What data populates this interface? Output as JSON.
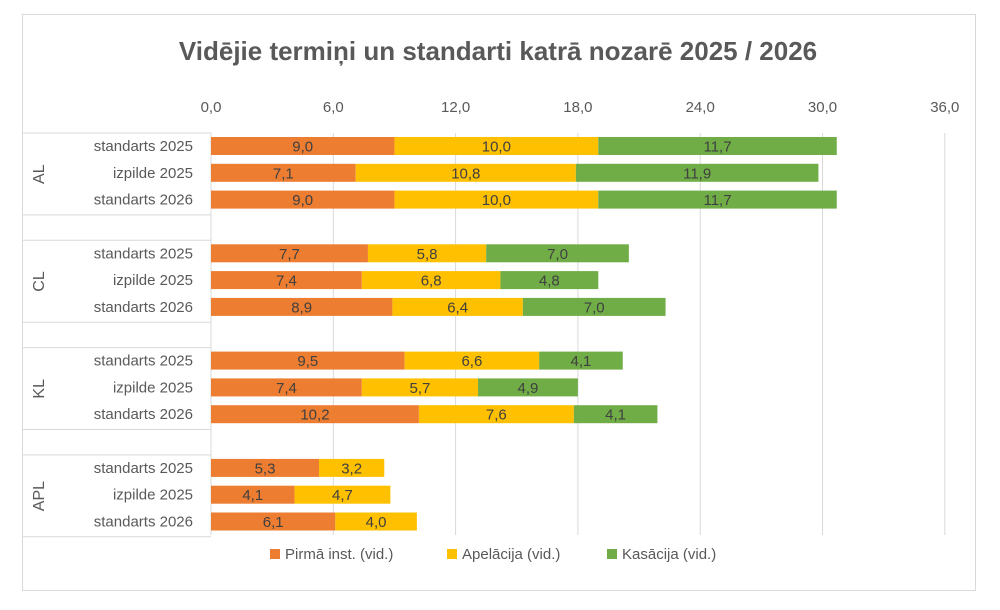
{
  "chart_data": {
    "type": "bar",
    "orientation": "horizontal",
    "stacked": true,
    "title": "Vidējie termiņi un standarti katrā nozarē 2025 / 2026",
    "xlim": [
      0,
      36
    ],
    "x_ticks": [
      "0,0",
      "6,0",
      "12,0",
      "18,0",
      "24,0",
      "30,0",
      "36,0"
    ],
    "x_tick_values": [
      0,
      6,
      12,
      18,
      24,
      30,
      36
    ],
    "grid": true,
    "legend_position": "bottom",
    "groups": [
      {
        "name": "AL",
        "rows": [
          {
            "label": "standarts 2025",
            "values": [
              9.0,
              10.0,
              11.7
            ],
            "labels": [
              "9,0",
              "10,0",
              "11,7"
            ]
          },
          {
            "label": "izpilde 2025",
            "values": [
              7.1,
              10.8,
              11.9
            ],
            "labels": [
              "7,1",
              "10,8",
              "11,9"
            ]
          },
          {
            "label": "standarts 2026",
            "values": [
              9.0,
              10.0,
              11.7
            ],
            "labels": [
              "9,0",
              "10,0",
              "11,7"
            ]
          }
        ]
      },
      {
        "name": "CL",
        "rows": [
          {
            "label": "standarts 2025",
            "values": [
              7.7,
              5.8,
              7.0
            ],
            "labels": [
              "7,7",
              "5,8",
              "7,0"
            ]
          },
          {
            "label": "izpilde 2025",
            "values": [
              7.4,
              6.8,
              4.8
            ],
            "labels": [
              "7,4",
              "6,8",
              "4,8"
            ]
          },
          {
            "label": "standarts 2026",
            "values": [
              8.9,
              6.4,
              7.0
            ],
            "labels": [
              "8,9",
              "6,4",
              "7,0"
            ]
          }
        ]
      },
      {
        "name": "KL",
        "rows": [
          {
            "label": "standarts 2025",
            "values": [
              9.5,
              6.6,
              4.1
            ],
            "labels": [
              "9,5",
              "6,6",
              "4,1"
            ]
          },
          {
            "label": "izpilde 2025",
            "values": [
              7.4,
              5.7,
              4.9
            ],
            "labels": [
              "7,4",
              "5,7",
              "4,9"
            ]
          },
          {
            "label": "standarts 2026",
            "values": [
              10.2,
              7.6,
              4.1
            ],
            "labels": [
              "10,2",
              "7,6",
              "4,1"
            ]
          }
        ]
      },
      {
        "name": "APL",
        "rows": [
          {
            "label": "standarts 2025",
            "values": [
              5.3,
              3.2
            ],
            "labels": [
              "5,3",
              "3,2"
            ]
          },
          {
            "label": "izpilde 2025",
            "values": [
              4.1,
              4.7
            ],
            "labels": [
              "4,1",
              "4,7"
            ]
          },
          {
            "label": "standarts 2026",
            "values": [
              6.1,
              4.0
            ],
            "labels": [
              "6,1",
              "4,0"
            ]
          }
        ]
      }
    ],
    "series": [
      {
        "name": "Pirmā inst. (vid.)",
        "color": "#ED7D31"
      },
      {
        "name": "Apelācija (vid.)",
        "color": "#FFC000"
      },
      {
        "name": "Kasācija (vid.)",
        "color": "#70AD47"
      }
    ]
  }
}
